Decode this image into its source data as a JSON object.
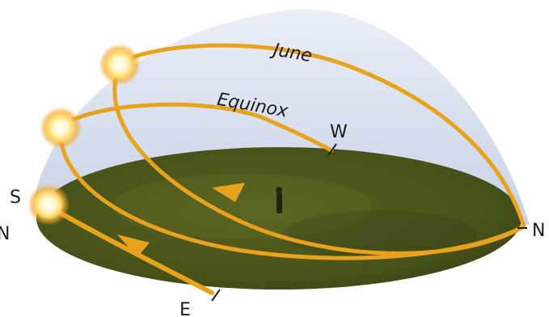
{
  "labels": {
    "june": "June",
    "equinox": "Equinox",
    "west": "W",
    "south": "S",
    "north_right": "N",
    "north_left": "N",
    "east": "E"
  },
  "colors": {
    "path": "#e8a21c",
    "dome": "#cdd6ea",
    "ground": "#4f5a22",
    "sun_glow": "#ffd766"
  }
}
